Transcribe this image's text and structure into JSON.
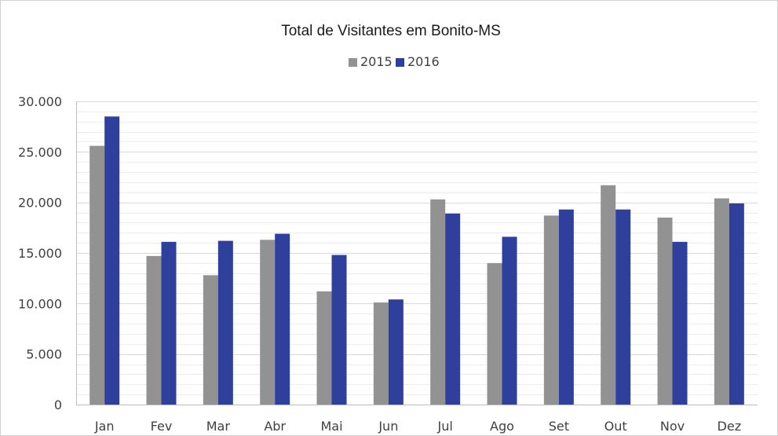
{
  "chart_data": {
    "type": "bar",
    "title": "Total de Visitantes em Bonito-MS",
    "xlabel": "",
    "ylabel": "",
    "categories": [
      "Jan",
      "Fev",
      "Mar",
      "Abr",
      "Mai",
      "Jun",
      "Jul",
      "Ago",
      "Set",
      "Out",
      "Nov",
      "Dez"
    ],
    "series": [
      {
        "name": "2015",
        "color": "#929292",
        "values": [
          25600,
          14700,
          12800,
          16300,
          11200,
          10100,
          20300,
          14000,
          18700,
          21700,
          18500,
          20400
        ]
      },
      {
        "name": "2016",
        "color": "#2e3f9c",
        "values": [
          28500,
          16100,
          16200,
          16900,
          14800,
          10400,
          18900,
          16600,
          19300,
          19300,
          16100,
          19900
        ]
      }
    ],
    "ylim": [
      0,
      30000
    ],
    "yticks": [
      0,
      5000,
      10000,
      15000,
      20000,
      25000,
      30000
    ],
    "ytick_labels": [
      "0",
      "5.000",
      "10.000",
      "15.000",
      "20.000",
      "25.000",
      "30.000"
    ],
    "grid": true,
    "legend_position": "top-center"
  }
}
